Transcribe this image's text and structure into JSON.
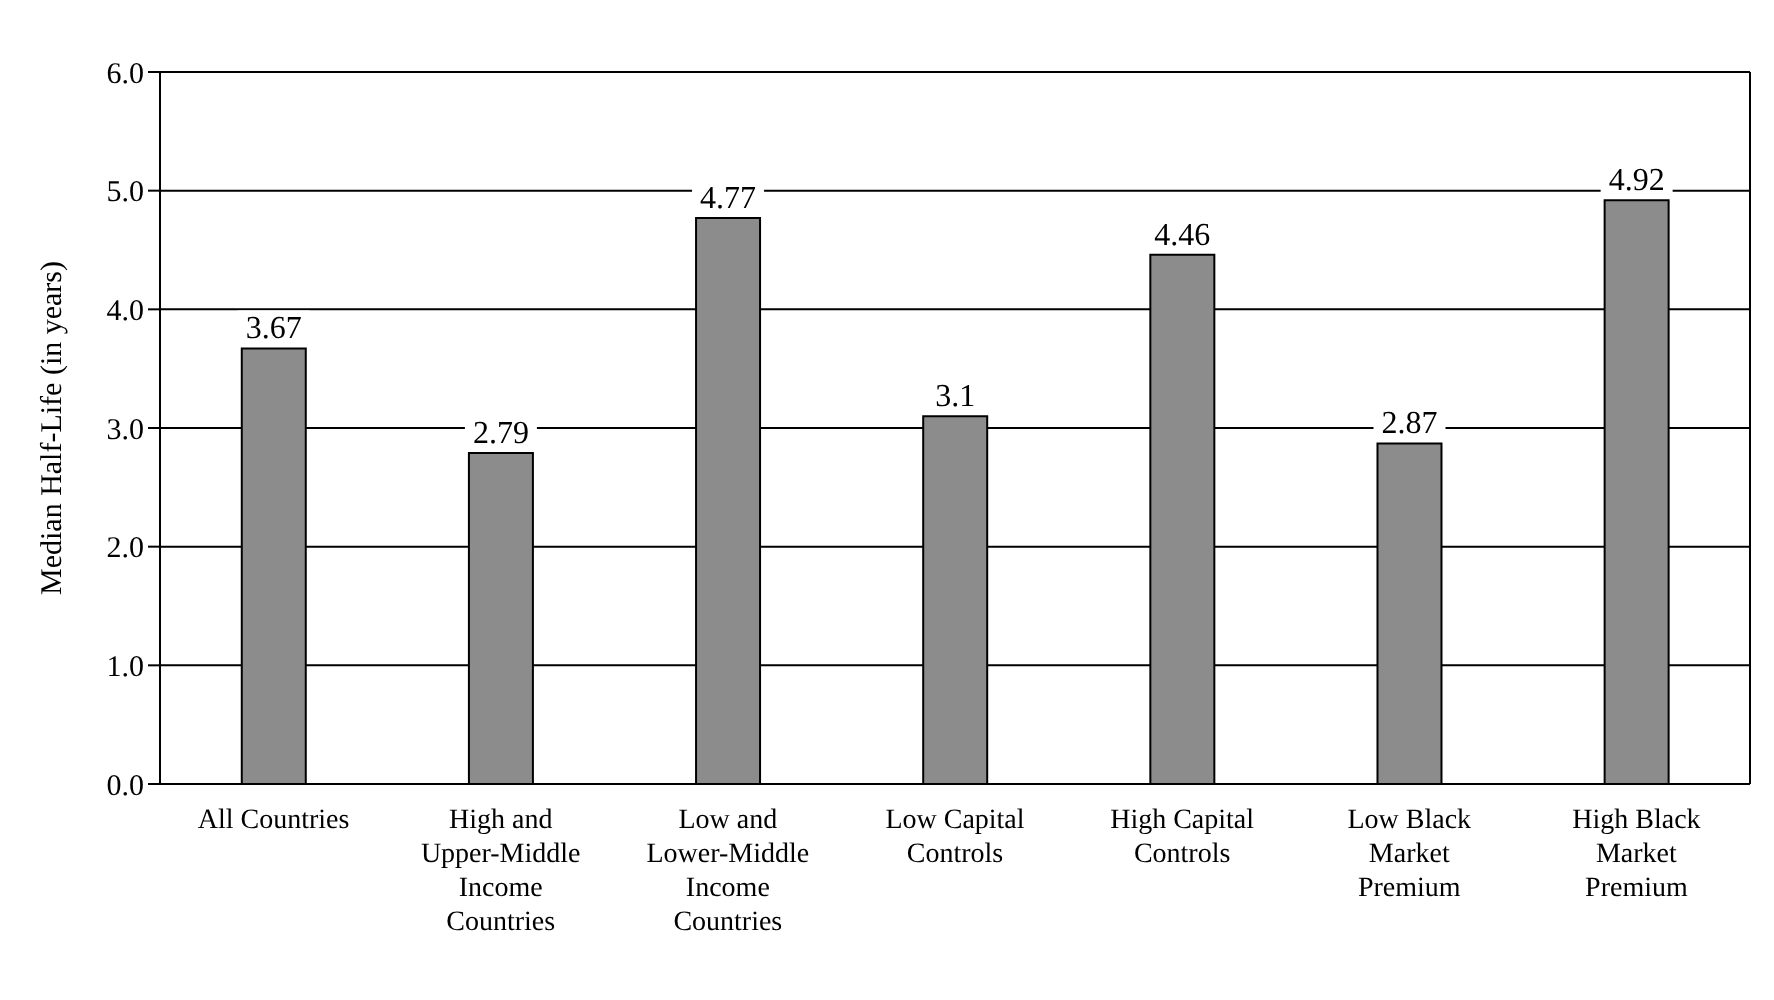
{
  "chart_data": {
    "type": "bar",
    "ylabel": "Median Half-Life (in years)",
    "categories": [
      "All Countries",
      "High and Upper-Middle Income Countries",
      "Low and Lower-Middle Income Countries",
      "Low Capital Controls",
      "High Capital Controls",
      "Low Black Market Premium",
      "High Black Market Premium"
    ],
    "values": [
      3.67,
      2.79,
      4.77,
      3.1,
      4.46,
      2.87,
      4.92
    ],
    "color": "#8c8c8c",
    "ylim": [
      0,
      6
    ],
    "yticks": [
      {
        "value": 0,
        "label": "0.0"
      },
      {
        "value": 1,
        "label": "1.0"
      },
      {
        "value": 2,
        "label": "2.0"
      },
      {
        "value": 3,
        "label": "3.0"
      },
      {
        "value": 4,
        "label": "4.0"
      },
      {
        "value": 5,
        "label": "5.0"
      },
      {
        "value": 6,
        "label": "6.0"
      }
    ],
    "grid": "y",
    "data_labels": true
  }
}
